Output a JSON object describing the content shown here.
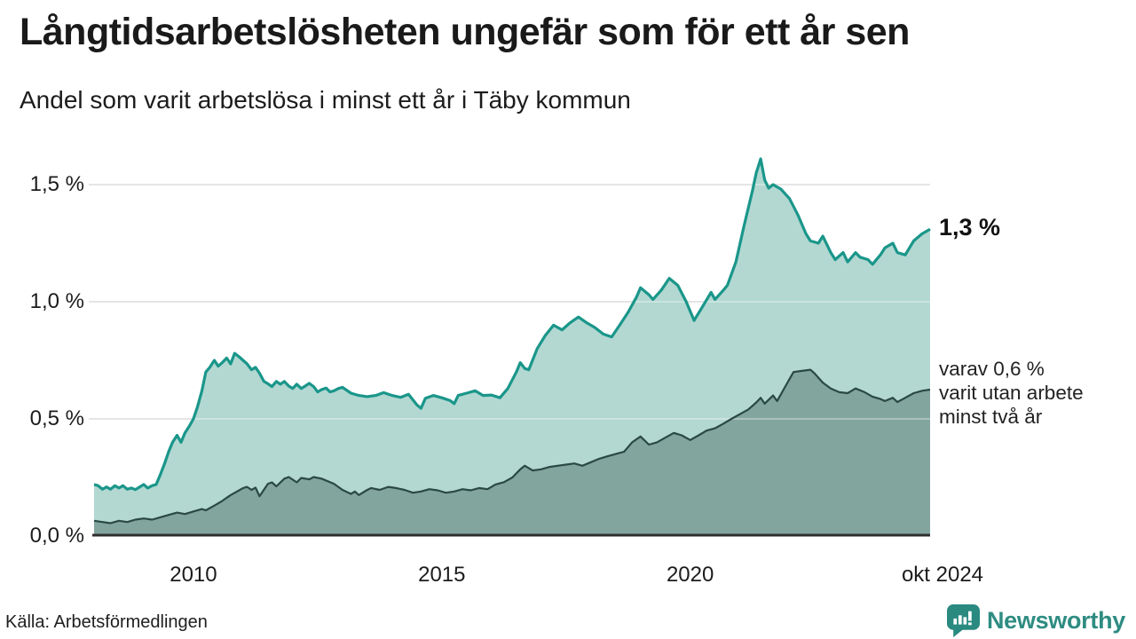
{
  "header": {
    "title": "Långtidsarbetslösheten ungefär som för ett år sen",
    "subtitle": "Andel som varit arbetslösa i minst ett år i Täby kommun"
  },
  "chart_data": {
    "type": "area",
    "title": "Långtidsarbetslösheten ungefär som för ett år sen",
    "subtitle": "Andel som varit arbetslösa i minst ett år i Täby kommun",
    "x_domain": [
      2008.0,
      2024.83
    ],
    "y_domain": [
      0,
      1.7
    ],
    "grid": true,
    "y_ticks": [
      {
        "value": 0.0,
        "label": "0,0 %"
      },
      {
        "value": 0.5,
        "label": "0,5 %"
      },
      {
        "value": 1.0,
        "label": "1,0 %"
      },
      {
        "value": 1.5,
        "label": "1,5 %"
      }
    ],
    "x_ticks": [
      {
        "value": 2010,
        "label": "2010"
      },
      {
        "value": 2015,
        "label": "2015"
      },
      {
        "value": 2020,
        "label": "2020"
      },
      {
        "value": 2024.83,
        "label": "okt 2024"
      }
    ],
    "colors": {
      "grid": "#d9d9d9",
      "grid_overlay": "rgba(255,255,255,0.32)",
      "axis": "#2e2e2e",
      "teal_line": "#1a968a",
      "teal_fill": "#b3d8d2",
      "dark_line": "#2b4944",
      "dark_fill": "#82a59e"
    },
    "series": [
      {
        "name": "Arbetslösa minst ett år",
        "end_value_label": "1,3 %",
        "points": [
          [
            2008.0,
            0.22
          ],
          [
            2008.08,
            0.215
          ],
          [
            2008.17,
            0.2
          ],
          [
            2008.25,
            0.21
          ],
          [
            2008.33,
            0.2
          ],
          [
            2008.42,
            0.215
          ],
          [
            2008.5,
            0.205
          ],
          [
            2008.58,
            0.215
          ],
          [
            2008.67,
            0.2
          ],
          [
            2008.75,
            0.205
          ],
          [
            2008.83,
            0.198
          ],
          [
            2008.92,
            0.21
          ],
          [
            2009.0,
            0.22
          ],
          [
            2009.08,
            0.205
          ],
          [
            2009.17,
            0.215
          ],
          [
            2009.25,
            0.22
          ],
          [
            2009.33,
            0.26
          ],
          [
            2009.42,
            0.31
          ],
          [
            2009.5,
            0.36
          ],
          [
            2009.58,
            0.4
          ],
          [
            2009.67,
            0.43
          ],
          [
            2009.75,
            0.4
          ],
          [
            2009.83,
            0.44
          ],
          [
            2009.92,
            0.47
          ],
          [
            2010.0,
            0.5
          ],
          [
            2010.08,
            0.55
          ],
          [
            2010.17,
            0.62
          ],
          [
            2010.25,
            0.7
          ],
          [
            2010.33,
            0.72
          ],
          [
            2010.42,
            0.75
          ],
          [
            2010.5,
            0.725
          ],
          [
            2010.58,
            0.74
          ],
          [
            2010.67,
            0.76
          ],
          [
            2010.75,
            0.735
          ],
          [
            2010.83,
            0.78
          ],
          [
            2010.92,
            0.765
          ],
          [
            2011.0,
            0.75
          ],
          [
            2011.08,
            0.735
          ],
          [
            2011.17,
            0.71
          ],
          [
            2011.25,
            0.72
          ],
          [
            2011.33,
            0.695
          ],
          [
            2011.42,
            0.66
          ],
          [
            2011.5,
            0.65
          ],
          [
            2011.58,
            0.638
          ],
          [
            2011.67,
            0.66
          ],
          [
            2011.75,
            0.648
          ],
          [
            2011.83,
            0.66
          ],
          [
            2011.92,
            0.64
          ],
          [
            2012.0,
            0.63
          ],
          [
            2012.08,
            0.648
          ],
          [
            2012.17,
            0.63
          ],
          [
            2012.25,
            0.64
          ],
          [
            2012.33,
            0.652
          ],
          [
            2012.42,
            0.638
          ],
          [
            2012.5,
            0.615
          ],
          [
            2012.58,
            0.625
          ],
          [
            2012.67,
            0.632
          ],
          [
            2012.75,
            0.615
          ],
          [
            2012.83,
            0.62
          ],
          [
            2012.92,
            0.63
          ],
          [
            2013.0,
            0.635
          ],
          [
            2013.17,
            0.61
          ],
          [
            2013.33,
            0.6
          ],
          [
            2013.5,
            0.595
          ],
          [
            2013.67,
            0.6
          ],
          [
            2013.83,
            0.612
          ],
          [
            2014.0,
            0.6
          ],
          [
            2014.17,
            0.592
          ],
          [
            2014.33,
            0.605
          ],
          [
            2014.5,
            0.56
          ],
          [
            2014.58,
            0.545
          ],
          [
            2014.67,
            0.588
          ],
          [
            2014.83,
            0.6
          ],
          [
            2015.0,
            0.59
          ],
          [
            2015.17,
            0.578
          ],
          [
            2015.25,
            0.565
          ],
          [
            2015.33,
            0.6
          ],
          [
            2015.5,
            0.61
          ],
          [
            2015.67,
            0.62
          ],
          [
            2015.83,
            0.6
          ],
          [
            2016.0,
            0.602
          ],
          [
            2016.17,
            0.59
          ],
          [
            2016.33,
            0.63
          ],
          [
            2016.5,
            0.7
          ],
          [
            2016.58,
            0.74
          ],
          [
            2016.67,
            0.715
          ],
          [
            2016.75,
            0.71
          ],
          [
            2016.92,
            0.8
          ],
          [
            2017.08,
            0.855
          ],
          [
            2017.25,
            0.9
          ],
          [
            2017.42,
            0.88
          ],
          [
            2017.58,
            0.91
          ],
          [
            2017.75,
            0.935
          ],
          [
            2017.92,
            0.91
          ],
          [
            2018.08,
            0.89
          ],
          [
            2018.25,
            0.862
          ],
          [
            2018.42,
            0.85
          ],
          [
            2018.58,
            0.9
          ],
          [
            2018.75,
            0.955
          ],
          [
            2018.92,
            1.02
          ],
          [
            2019.0,
            1.06
          ],
          [
            2019.17,
            1.03
          ],
          [
            2019.25,
            1.01
          ],
          [
            2019.42,
            1.05
          ],
          [
            2019.58,
            1.1
          ],
          [
            2019.75,
            1.07
          ],
          [
            2019.92,
            1.0
          ],
          [
            2020.08,
            0.92
          ],
          [
            2020.25,
            0.98
          ],
          [
            2020.42,
            1.04
          ],
          [
            2020.5,
            1.01
          ],
          [
            2020.67,
            1.05
          ],
          [
            2020.75,
            1.07
          ],
          [
            2020.92,
            1.17
          ],
          [
            2021.08,
            1.32
          ],
          [
            2021.25,
            1.47
          ],
          [
            2021.33,
            1.55
          ],
          [
            2021.42,
            1.61
          ],
          [
            2021.5,
            1.52
          ],
          [
            2021.58,
            1.485
          ],
          [
            2021.67,
            1.5
          ],
          [
            2021.83,
            1.48
          ],
          [
            2022.0,
            1.44
          ],
          [
            2022.17,
            1.37
          ],
          [
            2022.33,
            1.29
          ],
          [
            2022.42,
            1.26
          ],
          [
            2022.58,
            1.25
          ],
          [
            2022.67,
            1.28
          ],
          [
            2022.83,
            1.21
          ],
          [
            2022.92,
            1.18
          ],
          [
            2023.08,
            1.21
          ],
          [
            2023.17,
            1.17
          ],
          [
            2023.33,
            1.21
          ],
          [
            2023.42,
            1.19
          ],
          [
            2023.58,
            1.18
          ],
          [
            2023.67,
            1.16
          ],
          [
            2023.83,
            1.2
          ],
          [
            2023.92,
            1.23
          ],
          [
            2024.08,
            1.25
          ],
          [
            2024.17,
            1.21
          ],
          [
            2024.33,
            1.2
          ],
          [
            2024.5,
            1.26
          ],
          [
            2024.67,
            1.29
          ],
          [
            2024.83,
            1.31
          ]
        ]
      },
      {
        "name": "Varav utan arbete minst två år",
        "end_value_label": "0,6 %",
        "points": [
          [
            2008.0,
            0.065
          ],
          [
            2008.17,
            0.06
          ],
          [
            2008.33,
            0.055
          ],
          [
            2008.5,
            0.065
          ],
          [
            2008.67,
            0.06
          ],
          [
            2008.83,
            0.07
          ],
          [
            2009.0,
            0.075
          ],
          [
            2009.17,
            0.07
          ],
          [
            2009.33,
            0.08
          ],
          [
            2009.5,
            0.09
          ],
          [
            2009.67,
            0.1
          ],
          [
            2009.83,
            0.094
          ],
          [
            2010.0,
            0.105
          ],
          [
            2010.17,
            0.115
          ],
          [
            2010.25,
            0.11
          ],
          [
            2010.42,
            0.13
          ],
          [
            2010.58,
            0.15
          ],
          [
            2010.75,
            0.175
          ],
          [
            2010.92,
            0.195
          ],
          [
            2011.0,
            0.205
          ],
          [
            2011.08,
            0.21
          ],
          [
            2011.17,
            0.197
          ],
          [
            2011.25,
            0.207
          ],
          [
            2011.33,
            0.17
          ],
          [
            2011.5,
            0.223
          ],
          [
            2011.58,
            0.229
          ],
          [
            2011.67,
            0.212
          ],
          [
            2011.83,
            0.245
          ],
          [
            2011.92,
            0.252
          ],
          [
            2012.08,
            0.229
          ],
          [
            2012.17,
            0.248
          ],
          [
            2012.33,
            0.242
          ],
          [
            2012.42,
            0.252
          ],
          [
            2012.58,
            0.245
          ],
          [
            2012.83,
            0.223
          ],
          [
            2013.0,
            0.197
          ],
          [
            2013.17,
            0.18
          ],
          [
            2013.25,
            0.19
          ],
          [
            2013.33,
            0.175
          ],
          [
            2013.5,
            0.197
          ],
          [
            2013.58,
            0.205
          ],
          [
            2013.75,
            0.197
          ],
          [
            2013.92,
            0.21
          ],
          [
            2014.08,
            0.205
          ],
          [
            2014.25,
            0.197
          ],
          [
            2014.42,
            0.185
          ],
          [
            2014.58,
            0.19
          ],
          [
            2014.75,
            0.2
          ],
          [
            2014.92,
            0.195
          ],
          [
            2015.08,
            0.185
          ],
          [
            2015.25,
            0.19
          ],
          [
            2015.42,
            0.2
          ],
          [
            2015.58,
            0.195
          ],
          [
            2015.75,
            0.205
          ],
          [
            2015.92,
            0.2
          ],
          [
            2016.08,
            0.22
          ],
          [
            2016.25,
            0.23
          ],
          [
            2016.42,
            0.25
          ],
          [
            2016.58,
            0.285
          ],
          [
            2016.67,
            0.3
          ],
          [
            2016.83,
            0.28
          ],
          [
            2017.0,
            0.285
          ],
          [
            2017.17,
            0.295
          ],
          [
            2017.33,
            0.3
          ],
          [
            2017.5,
            0.305
          ],
          [
            2017.67,
            0.31
          ],
          [
            2017.83,
            0.3
          ],
          [
            2018.0,
            0.315
          ],
          [
            2018.17,
            0.33
          ],
          [
            2018.33,
            0.34
          ],
          [
            2018.5,
            0.35
          ],
          [
            2018.67,
            0.36
          ],
          [
            2018.83,
            0.4
          ],
          [
            2019.0,
            0.425
          ],
          [
            2019.17,
            0.39
          ],
          [
            2019.33,
            0.4
          ],
          [
            2019.5,
            0.42
          ],
          [
            2019.67,
            0.44
          ],
          [
            2019.83,
            0.43
          ],
          [
            2020.0,
            0.41
          ],
          [
            2020.17,
            0.43
          ],
          [
            2020.33,
            0.45
          ],
          [
            2020.5,
            0.46
          ],
          [
            2020.67,
            0.48
          ],
          [
            2020.83,
            0.5
          ],
          [
            2021.0,
            0.52
          ],
          [
            2021.17,
            0.54
          ],
          [
            2021.33,
            0.57
          ],
          [
            2021.42,
            0.59
          ],
          [
            2021.5,
            0.565
          ],
          [
            2021.67,
            0.6
          ],
          [
            2021.75,
            0.576
          ],
          [
            2021.92,
            0.64
          ],
          [
            2022.08,
            0.7
          ],
          [
            2022.25,
            0.705
          ],
          [
            2022.42,
            0.71
          ],
          [
            2022.5,
            0.695
          ],
          [
            2022.67,
            0.655
          ],
          [
            2022.83,
            0.63
          ],
          [
            2023.0,
            0.614
          ],
          [
            2023.17,
            0.61
          ],
          [
            2023.33,
            0.63
          ],
          [
            2023.5,
            0.615
          ],
          [
            2023.67,
            0.595
          ],
          [
            2023.83,
            0.585
          ],
          [
            2023.92,
            0.576
          ],
          [
            2024.08,
            0.59
          ],
          [
            2024.17,
            0.572
          ],
          [
            2024.33,
            0.59
          ],
          [
            2024.5,
            0.61
          ],
          [
            2024.67,
            0.62
          ],
          [
            2024.83,
            0.625
          ]
        ]
      }
    ],
    "annotations": {
      "end_label": "1,3 %",
      "dark_label_lines": [
        "varav 0,6 %",
        "varit utan arbete",
        "minst två år"
      ]
    },
    "legend_position": "none"
  },
  "footer": {
    "source": "Källa: Arbetsförmedlingen",
    "brand": "Newsworthy"
  }
}
